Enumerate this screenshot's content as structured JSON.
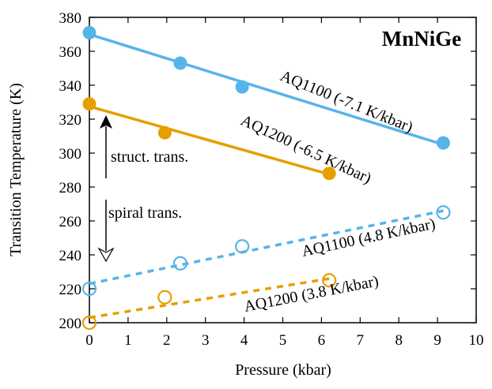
{
  "chart_data": {
    "type": "scatter",
    "title": "MnNiGe",
    "xlabel": "Pressure (kbar)",
    "ylabel": "Transition Temperature (K)",
    "xlim": [
      0,
      10
    ],
    "ylim": [
      200,
      380
    ],
    "x_ticks": [
      0,
      1,
      2,
      3,
      4,
      5,
      6,
      7,
      8,
      9,
      10
    ],
    "y_ticks": [
      200,
      220,
      240,
      260,
      280,
      300,
      320,
      340,
      360,
      380
    ],
    "grid": false,
    "colors": {
      "AQ1100": "#56b4e9",
      "AQ1200": "#e69f00"
    },
    "series": [
      {
        "id": "aq1100_struct",
        "label": "AQ1100 (-7.1 K/kbar)",
        "color": "#56b4e9",
        "marker": "filled-circle",
        "line": "solid",
        "x": [
          0,
          2.35,
          3.95,
          9.15
        ],
        "y": [
          371,
          353,
          339,
          306
        ],
        "fit": {
          "x": [
            0,
            9.15
          ],
          "y": [
            370,
            305
          ]
        }
      },
      {
        "id": "aq1200_struct",
        "label": "AQ1200 (-6.5 K/kbar)",
        "color": "#e69f00",
        "marker": "filled-circle",
        "line": "solid",
        "x": [
          0,
          1.95,
          6.2
        ],
        "y": [
          329,
          312,
          288
        ],
        "fit": {
          "x": [
            0,
            6.2
          ],
          "y": [
            327.5,
            287.5
          ]
        }
      },
      {
        "id": "aq1100_spiral",
        "label": "AQ1100 (4.8 K/kbar)",
        "color": "#56b4e9",
        "marker": "open-circle",
        "line": "dashed",
        "x": [
          0,
          2.35,
          3.95,
          9.15
        ],
        "y": [
          220,
          235,
          245,
          265
        ],
        "fit": {
          "x": [
            0,
            9.15
          ],
          "y": [
            223,
            266
          ]
        }
      },
      {
        "id": "aq1200_spiral",
        "label": "AQ1200 (3.8 K/kbar)",
        "color": "#e69f00",
        "marker": "open-circle",
        "line": "dashed",
        "x": [
          0,
          1.95,
          6.2
        ],
        "y": [
          200,
          215,
          225
        ],
        "fit": {
          "x": [
            0,
            6.2
          ],
          "y": [
            203,
            226
          ]
        }
      }
    ],
    "annotations": {
      "struct": "struct. trans.",
      "spiral": "spiral trans."
    }
  }
}
